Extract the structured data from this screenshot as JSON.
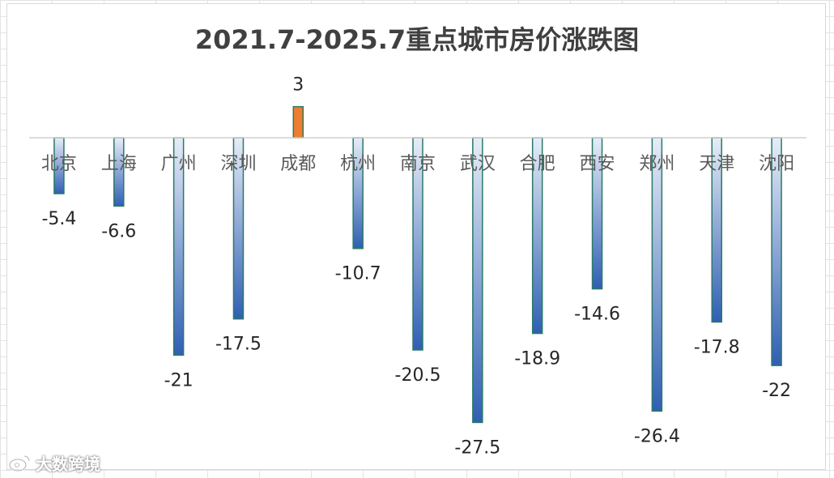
{
  "chart_data": {
    "type": "bar",
    "title": "2021.7-2025.7重点城市房价涨跌图",
    "categories": [
      "北京",
      "上海",
      "广州",
      "深圳",
      "成都",
      "杭州",
      "南京",
      "武汉",
      "合肥",
      "西安",
      "郑州",
      "天津",
      "沈阳"
    ],
    "values": [
      -5.4,
      -6.6,
      -21,
      -17.5,
      3,
      -10.7,
      -20.5,
      -27.5,
      -18.9,
      -14.6,
      -26.4,
      -17.8,
      -22
    ],
    "data_labels": [
      "-5.4",
      "-6.6",
      "-21",
      "-17.5",
      "3",
      "-10.7",
      "-20.5",
      "-27.5",
      "-18.9",
      "-14.6",
      "-26.4",
      "-17.8",
      "-22"
    ],
    "xlabel": "",
    "ylabel": "",
    "grid": false,
    "legend": "none",
    "colors": {
      "negative_fill_top": "#e6edf7",
      "negative_fill_bottom": "#2f5fb3",
      "bar_border": "#2b7a66",
      "positive_fill": "#ed7d31",
      "positive_border": "#2b7a66",
      "axis": "#d0d0d0",
      "text": "#595959"
    }
  },
  "watermark": {
    "text": "大数跨境",
    "icon": "weibo-logo"
  }
}
